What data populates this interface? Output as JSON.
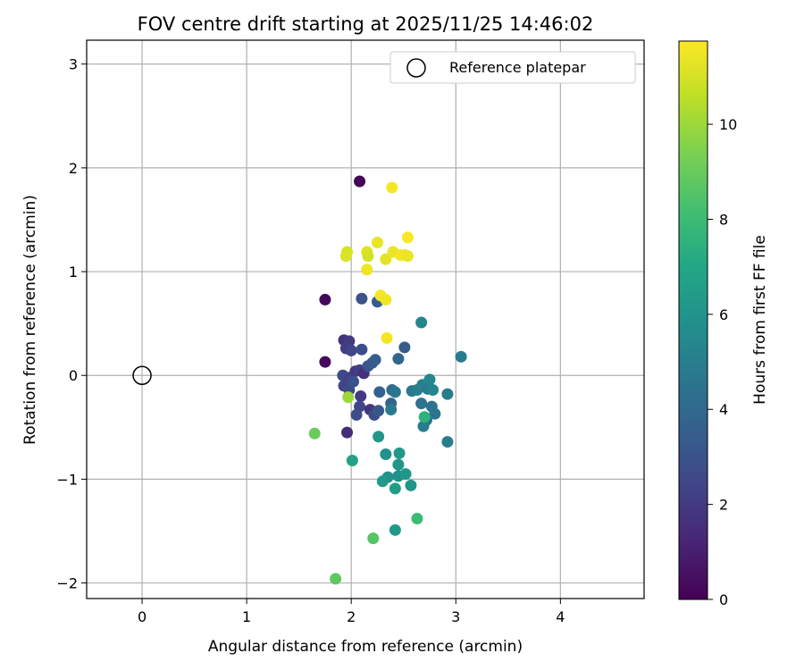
{
  "chart_data": {
    "type": "scatter",
    "title": "FOV centre drift starting at 2025/11/25 14:46:02",
    "xlabel": "Angular distance from reference (arcmin)",
    "ylabel": "Rotation from reference (arcmin)",
    "xlim": [
      -0.53,
      4.8
    ],
    "ylim": [
      -2.15,
      3.23
    ],
    "xticks": [
      0,
      1,
      2,
      3,
      4
    ],
    "yticks": [
      -2,
      -1,
      0,
      1,
      2,
      3
    ],
    "xtick_labels": [
      "0",
      "1",
      "2",
      "3",
      "4"
    ],
    "ytick_labels": [
      "−2",
      "−1",
      "0",
      "1",
      "2",
      "3"
    ],
    "grid": true,
    "legend": {
      "placement": "top-right",
      "entries": [
        "Reference platepar"
      ]
    },
    "reference_point": {
      "x": 0,
      "y": 0,
      "label": "Reference platepar"
    },
    "colorbar": {
      "label": "Hours from first FF file",
      "min": 0,
      "max": 11.75,
      "ticks": [
        0,
        2,
        4,
        6,
        8,
        10
      ],
      "tick_labels": [
        "0",
        "2",
        "4",
        "6",
        "8",
        "10"
      ],
      "colormap": "viridis"
    },
    "points": [
      {
        "x": 2.08,
        "y": 1.87,
        "c": 0.1
      },
      {
        "x": 1.75,
        "y": 0.73,
        "c": 0.2
      },
      {
        "x": 1.75,
        "y": 0.13,
        "c": 0.3
      },
      {
        "x": 1.96,
        "y": -0.55,
        "c": 1.5
      },
      {
        "x": 2.1,
        "y": 0.74,
        "c": 3.0
      },
      {
        "x": 2.25,
        "y": 0.71,
        "c": 3.5
      },
      {
        "x": 1.93,
        "y": 0.34,
        "c": 1.7
      },
      {
        "x": 1.98,
        "y": 0.33,
        "c": 2.0
      },
      {
        "x": 1.95,
        "y": 0.26,
        "c": 2.1
      },
      {
        "x": 2.0,
        "y": 0.24,
        "c": 2.4
      },
      {
        "x": 2.1,
        "y": 0.25,
        "c": 2.8
      },
      {
        "x": 1.92,
        "y": 0.0,
        "c": 2.6
      },
      {
        "x": 1.99,
        "y": -0.02,
        "c": 2.3
      },
      {
        "x": 2.04,
        "y": 0.04,
        "c": 1.9
      },
      {
        "x": 2.08,
        "y": 0.05,
        "c": 2.2
      },
      {
        "x": 2.12,
        "y": 0.02,
        "c": 1.6
      },
      {
        "x": 2.16,
        "y": 0.09,
        "c": 3.1
      },
      {
        "x": 2.2,
        "y": 0.12,
        "c": 3.3
      },
      {
        "x": 2.23,
        "y": 0.15,
        "c": 3.5
      },
      {
        "x": 1.93,
        "y": -0.1,
        "c": 2.4
      },
      {
        "x": 1.98,
        "y": -0.14,
        "c": 2.6
      },
      {
        "x": 2.02,
        "y": -0.06,
        "c": 2.9
      },
      {
        "x": 2.09,
        "y": -0.2,
        "c": 2.0
      },
      {
        "x": 2.08,
        "y": -0.3,
        "c": 2.5
      },
      {
        "x": 2.05,
        "y": -0.38,
        "c": 2.8
      },
      {
        "x": 2.18,
        "y": -0.33,
        "c": 1.8
      },
      {
        "x": 2.22,
        "y": -0.38,
        "c": 2.7
      },
      {
        "x": 2.26,
        "y": -0.34,
        "c": 3.2
      },
      {
        "x": 2.27,
        "y": -0.16,
        "c": 3.6
      },
      {
        "x": 2.38,
        "y": -0.27,
        "c": 3.8
      },
      {
        "x": 2.39,
        "y": -0.14,
        "c": 4.2
      },
      {
        "x": 2.42,
        "y": -0.16,
        "c": 4.6
      },
      {
        "x": 2.45,
        "y": 0.16,
        "c": 3.9
      },
      {
        "x": 2.51,
        "y": 0.27,
        "c": 3.4
      },
      {
        "x": 2.38,
        "y": -0.33,
        "c": 4.8
      },
      {
        "x": 2.58,
        "y": -0.15,
        "c": 4.7
      },
      {
        "x": 2.63,
        "y": -0.14,
        "c": 5.0
      },
      {
        "x": 2.67,
        "y": -0.27,
        "c": 4.4
      },
      {
        "x": 2.68,
        "y": -0.09,
        "c": 5.2
      },
      {
        "x": 2.73,
        "y": -0.13,
        "c": 4.8
      },
      {
        "x": 2.67,
        "y": 0.51,
        "c": 5.3
      },
      {
        "x": 2.75,
        "y": -0.04,
        "c": 5.4
      },
      {
        "x": 2.78,
        "y": -0.14,
        "c": 5.3
      },
      {
        "x": 2.77,
        "y": -0.3,
        "c": 4.4
      },
      {
        "x": 2.8,
        "y": -0.37,
        "c": 4.6
      },
      {
        "x": 2.72,
        "y": -0.43,
        "c": 4.5
      },
      {
        "x": 2.69,
        "y": -0.49,
        "c": 4.9
      },
      {
        "x": 2.92,
        "y": -0.18,
        "c": 4.9
      },
      {
        "x": 3.05,
        "y": 0.18,
        "c": 4.9
      },
      {
        "x": 2.92,
        "y": -0.64,
        "c": 5.0
      },
      {
        "x": 2.26,
        "y": -0.59,
        "c": 6.2
      },
      {
        "x": 2.33,
        "y": -0.76,
        "c": 6.0
      },
      {
        "x": 2.46,
        "y": -0.75,
        "c": 6.3
      },
      {
        "x": 2.45,
        "y": -0.86,
        "c": 6.1
      },
      {
        "x": 2.35,
        "y": -0.98,
        "c": 6.0
      },
      {
        "x": 2.3,
        "y": -1.02,
        "c": 6.4
      },
      {
        "x": 2.45,
        "y": -0.97,
        "c": 5.9
      },
      {
        "x": 2.52,
        "y": -0.95,
        "c": 6.2
      },
      {
        "x": 2.42,
        "y": -1.09,
        "c": 6.5
      },
      {
        "x": 2.57,
        "y": -1.06,
        "c": 6.2
      },
      {
        "x": 2.42,
        "y": -1.49,
        "c": 6.3
      },
      {
        "x": 2.01,
        "y": -0.82,
        "c": 6.8
      },
      {
        "x": 2.7,
        "y": -0.4,
        "c": 7.5
      },
      {
        "x": 2.63,
        "y": -1.38,
        "c": 8.0
      },
      {
        "x": 2.21,
        "y": -1.57,
        "c": 8.6
      },
      {
        "x": 1.85,
        "y": -1.96,
        "c": 8.8
      },
      {
        "x": 1.65,
        "y": -0.56,
        "c": 9.0
      },
      {
        "x": 1.97,
        "y": -0.21,
        "c": 10.0
      },
      {
        "x": 1.96,
        "y": 1.19,
        "c": 11.0
      },
      {
        "x": 1.95,
        "y": 1.15,
        "c": 11.1
      },
      {
        "x": 2.15,
        "y": 1.19,
        "c": 11.2
      },
      {
        "x": 2.16,
        "y": 1.15,
        "c": 11.0
      },
      {
        "x": 2.15,
        "y": 1.02,
        "c": 11.5
      },
      {
        "x": 2.25,
        "y": 1.28,
        "c": 11.4
      },
      {
        "x": 2.39,
        "y": 1.81,
        "c": 11.6
      },
      {
        "x": 2.33,
        "y": 1.12,
        "c": 11.3
      },
      {
        "x": 2.4,
        "y": 1.19,
        "c": 11.4
      },
      {
        "x": 2.47,
        "y": 1.16,
        "c": 11.6
      },
      {
        "x": 2.51,
        "y": 1.16,
        "c": 11.5
      },
      {
        "x": 2.54,
        "y": 1.15,
        "c": 11.4
      },
      {
        "x": 2.54,
        "y": 1.33,
        "c": 11.7
      },
      {
        "x": 2.28,
        "y": 0.77,
        "c": 11.6
      },
      {
        "x": 2.33,
        "y": 0.73,
        "c": 11.5
      },
      {
        "x": 2.34,
        "y": 0.36,
        "c": 11.6
      }
    ]
  }
}
